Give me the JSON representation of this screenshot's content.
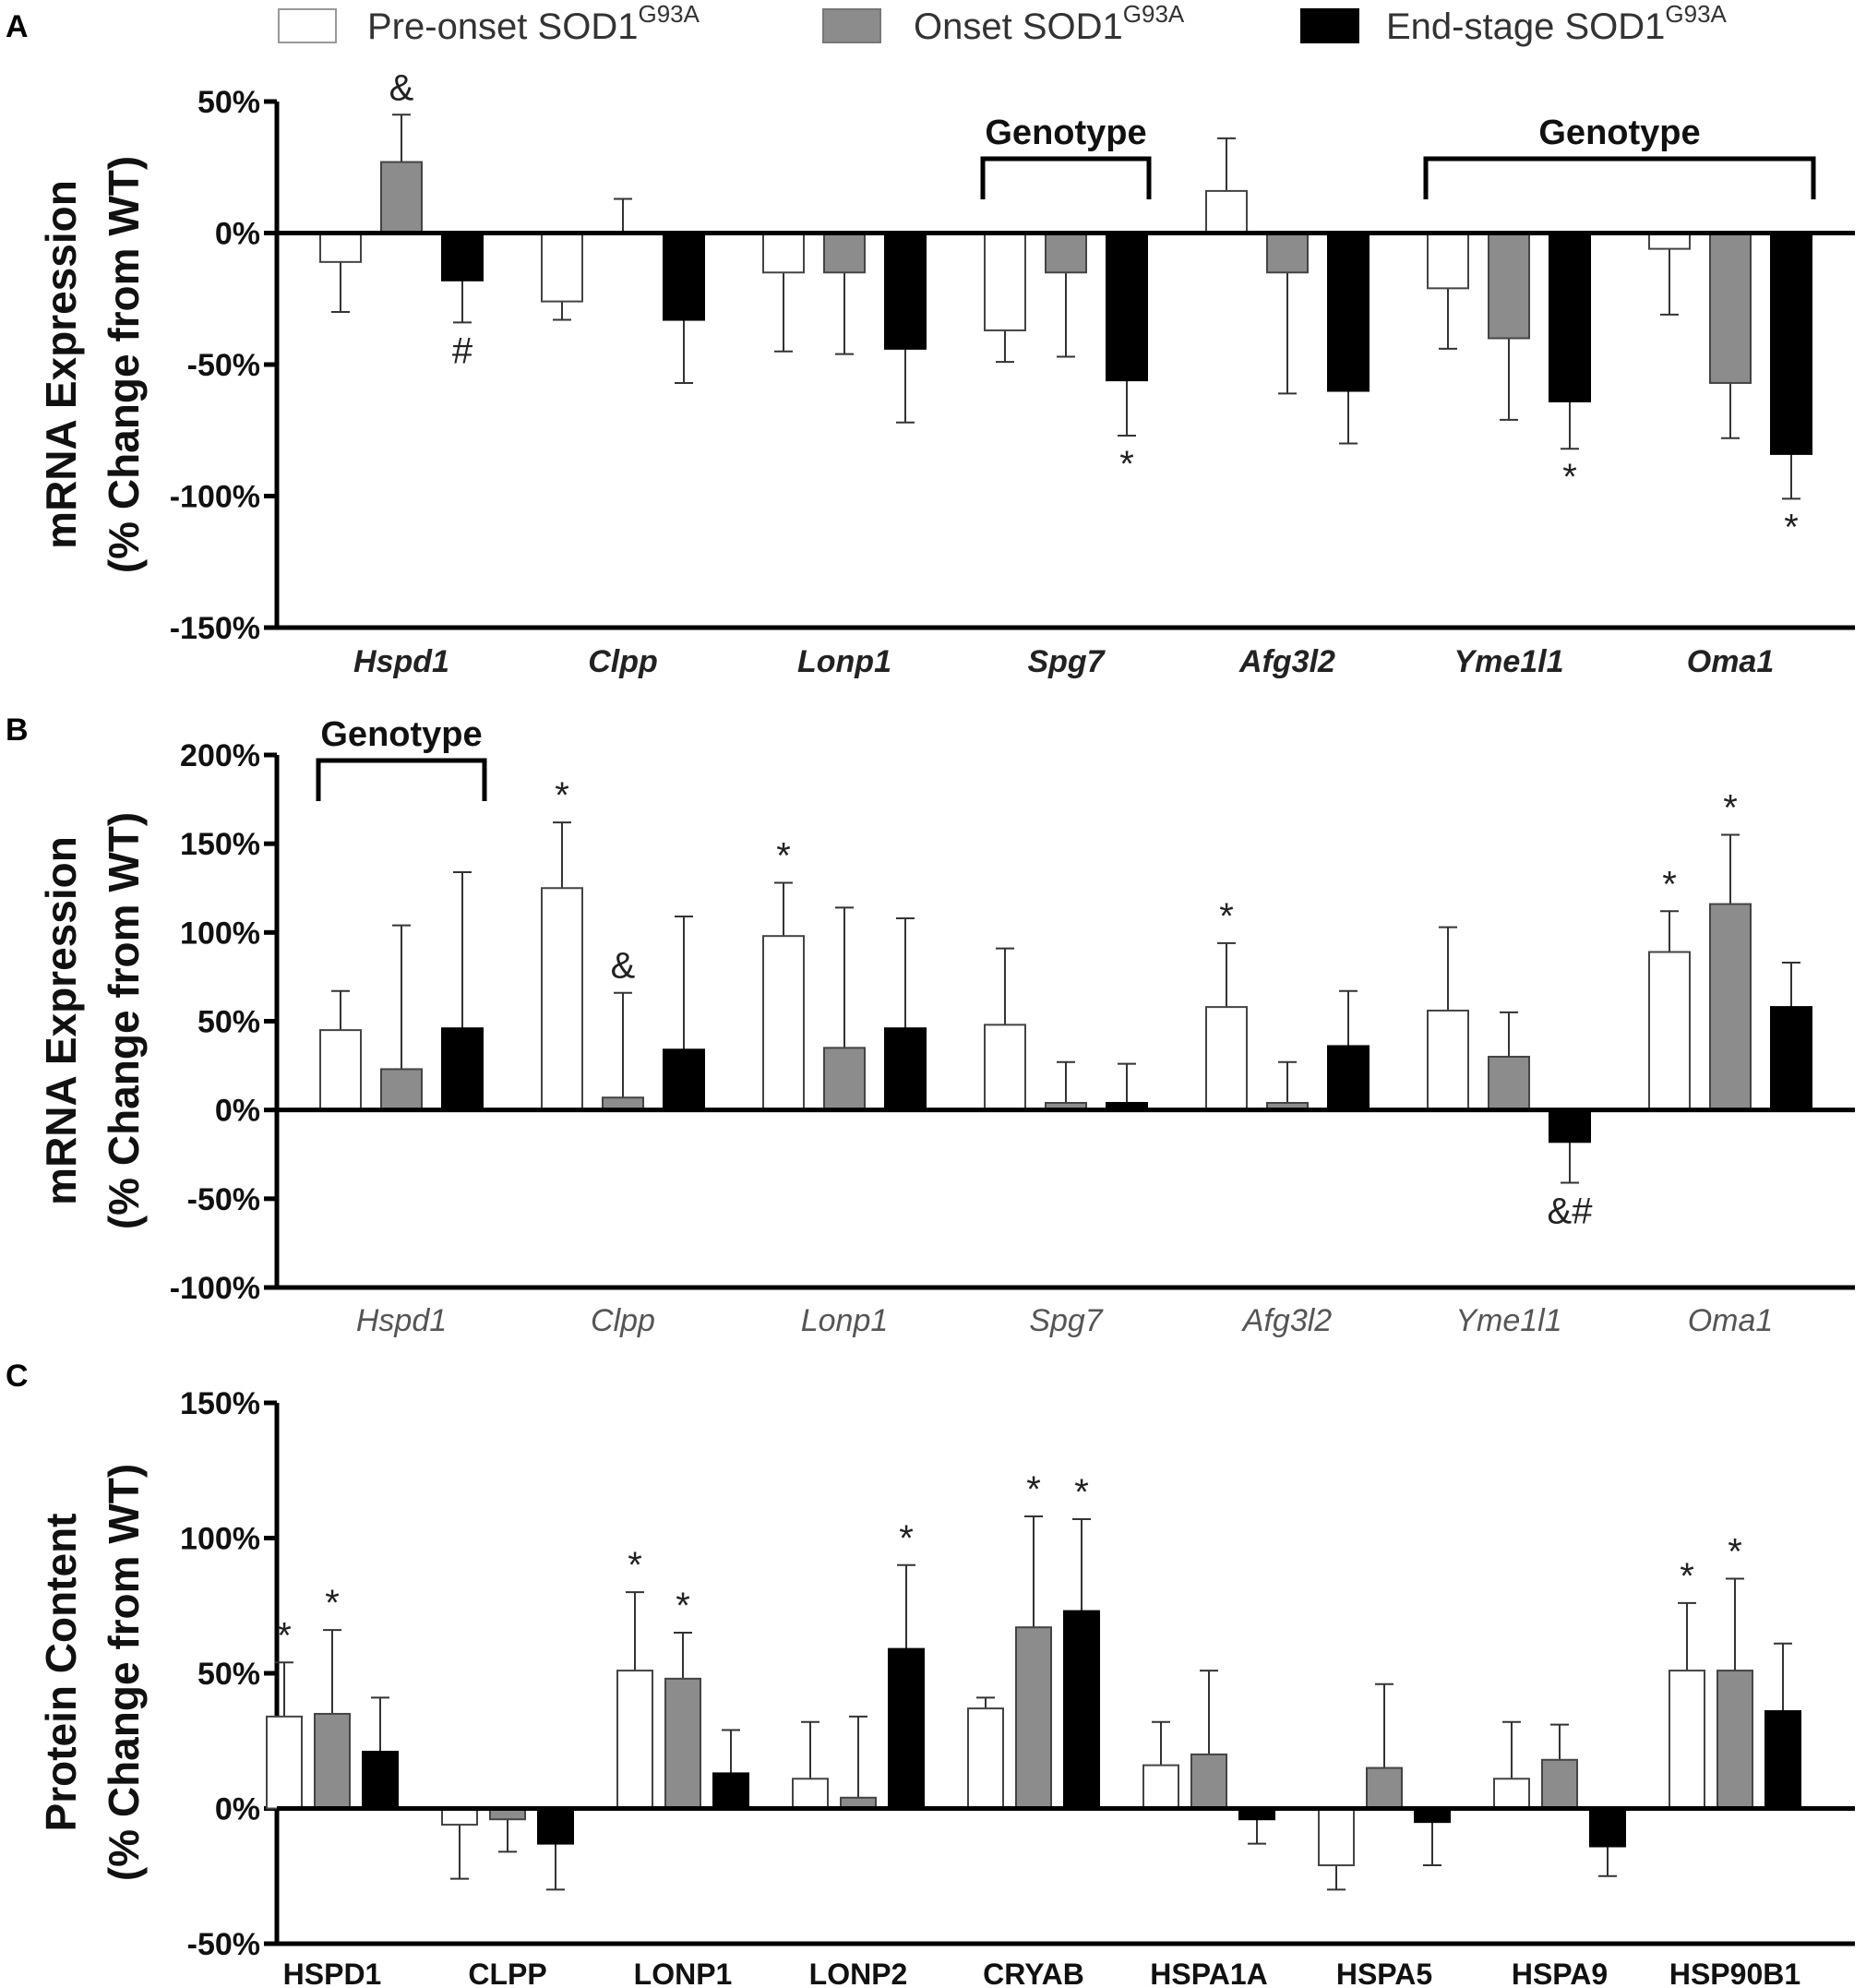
{
  "legend": [
    {
      "base": "Pre-onset SOD1",
      "sup": "G93A",
      "color": "#ffffff"
    },
    {
      "base": "Onset SOD1",
      "sup": "G93A",
      "color": "#8c8c8c"
    },
    {
      "base": "End-stage SOD1",
      "sup": "G93A",
      "color": "#000000"
    }
  ],
  "chart_data": [
    {
      "panel": "A",
      "type": "bar",
      "ylabel": [
        "mRNA Expression",
        "(% Change from WT)"
      ],
      "ylim": [
        -150,
        50
      ],
      "yticks": [
        50,
        0,
        -50,
        -100,
        -150
      ],
      "ytick_labels": [
        "50%",
        "0%",
        "-50%",
        "-100%",
        "-150%"
      ],
      "categories": [
        "Hspd1",
        "Clpp",
        "Lonp1",
        "Spg7",
        "Afg3l2",
        "Yme1l1",
        "Oma1"
      ],
      "category_style": "italic-bold",
      "series": [
        {
          "name": "Pre-onset SOD1G93A",
          "values": [
            -11,
            -26,
            -15,
            -37,
            16,
            -21,
            -6
          ],
          "errors": [
            19,
            7,
            30,
            12,
            20,
            23,
            25
          ]
        },
        {
          "name": "Onset SOD1G93A",
          "values": [
            27,
            0,
            -15,
            -15,
            -15,
            -40,
            -57
          ],
          "errors": [
            18,
            13,
            31,
            32,
            46,
            31,
            21
          ]
        },
        {
          "name": "End-stage SOD1G93A",
          "values": [
            -18,
            -33,
            -44,
            -56,
            -60,
            -64,
            -84
          ],
          "errors": [
            16,
            24,
            28,
            21,
            20,
            18,
            17
          ]
        }
      ],
      "annotations": [
        {
          "category": 0,
          "series": 1,
          "text": "&",
          "position": "above"
        },
        {
          "category": 0,
          "series": 2,
          "text": "#",
          "position": "below"
        },
        {
          "category": 3,
          "series": 2,
          "text": "*",
          "position": "below"
        },
        {
          "category": 5,
          "series": 2,
          "text": "*",
          "position": "below"
        },
        {
          "category": 6,
          "series": 2,
          "text": "*",
          "position": "below"
        }
      ],
      "brackets": [
        {
          "start": 3,
          "end": 3,
          "label": "Genotype"
        },
        {
          "start": 5,
          "end": 6,
          "label": "Genotype"
        }
      ]
    },
    {
      "panel": "B",
      "type": "bar",
      "ylabel": [
        "mRNA Expression",
        "(% Change from WT)"
      ],
      "ylim": [
        -100,
        200
      ],
      "yticks": [
        200,
        150,
        100,
        50,
        0,
        -50,
        -100
      ],
      "ytick_labels": [
        "200%",
        "150%",
        "100%",
        "50%",
        "0%",
        "-50%",
        "-100%"
      ],
      "categories": [
        "Hspd1",
        "Clpp",
        "Lonp1",
        "Spg7",
        "Afg3l2",
        "Yme1l1",
        "Oma1"
      ],
      "category_style": "italic-light",
      "series": [
        {
          "name": "Pre-onset SOD1G93A",
          "values": [
            45,
            125,
            98,
            48,
            58,
            56,
            89
          ],
          "errors": [
            22,
            37,
            30,
            43,
            36,
            47,
            23
          ]
        },
        {
          "name": "Onset SOD1G93A",
          "values": [
            23,
            7,
            35,
            4,
            4,
            30,
            116
          ],
          "errors": [
            81,
            59,
            79,
            23,
            23,
            25,
            39
          ]
        },
        {
          "name": "End-stage SOD1G93A",
          "values": [
            46,
            34,
            46,
            4,
            36,
            -18,
            58
          ],
          "errors": [
            88,
            75,
            62,
            22,
            31,
            23,
            25
          ]
        }
      ],
      "annotations": [
        {
          "category": 1,
          "series": 0,
          "text": "*",
          "position": "above"
        },
        {
          "category": 1,
          "series": 1,
          "text": "&",
          "position": "above"
        },
        {
          "category": 2,
          "series": 0,
          "text": "*",
          "position": "above"
        },
        {
          "category": 4,
          "series": 0,
          "text": "*",
          "position": "above"
        },
        {
          "category": 5,
          "series": 2,
          "text": "&#",
          "position": "below"
        },
        {
          "category": 6,
          "series": 0,
          "text": "*",
          "position": "above"
        },
        {
          "category": 6,
          "series": 1,
          "text": "*",
          "position": "above"
        }
      ],
      "brackets": [
        {
          "start": 0,
          "end": 0,
          "label": "Genotype"
        }
      ]
    },
    {
      "panel": "C",
      "type": "bar",
      "ylabel": [
        "Protein Content",
        "(% Change from WT)"
      ],
      "ylim": [
        -50,
        150
      ],
      "yticks": [
        150,
        100,
        50,
        0,
        -50
      ],
      "ytick_labels": [
        "150%",
        "100%",
        "50%",
        "0%",
        "-50%"
      ],
      "categories": [
        "HSPD1",
        "CLPP",
        "LONP1",
        "LONP2",
        "CRYAB",
        "HSPA1A",
        "HSPA5",
        "HSPA9",
        "HSP90B1"
      ],
      "category_style": "bold",
      "series": [
        {
          "name": "Pre-onset SOD1G93A",
          "values": [
            34,
            -6,
            51,
            11,
            37,
            16,
            -21,
            11,
            51
          ],
          "errors": [
            20,
            20,
            29,
            21,
            4,
            16,
            9,
            21,
            25
          ]
        },
        {
          "name": "Onset SOD1G93A",
          "values": [
            35,
            -4,
            48,
            4,
            67,
            20,
            15,
            18,
            51
          ],
          "errors": [
            31,
            12,
            17,
            30,
            41,
            31,
            31,
            13,
            34
          ]
        },
        {
          "name": "End-stage SOD1G93A",
          "values": [
            21,
            -13,
            13,
            59,
            73,
            -4,
            -5,
            -14,
            36
          ],
          "errors": [
            20,
            17,
            16,
            31,
            34,
            9,
            16,
            11,
            25
          ]
        }
      ],
      "annotations": [
        {
          "category": 0,
          "series": 0,
          "text": "*",
          "position": "above"
        },
        {
          "category": 0,
          "series": 1,
          "text": "*",
          "position": "above"
        },
        {
          "category": 2,
          "series": 0,
          "text": "*",
          "position": "above"
        },
        {
          "category": 2,
          "series": 1,
          "text": "*",
          "position": "above"
        },
        {
          "category": 3,
          "series": 2,
          "text": "*",
          "position": "above"
        },
        {
          "category": 4,
          "series": 1,
          "text": "*",
          "position": "above"
        },
        {
          "category": 4,
          "series": 2,
          "text": "*",
          "position": "above"
        },
        {
          "category": 8,
          "series": 0,
          "text": "*",
          "position": "above"
        },
        {
          "category": 8,
          "series": 1,
          "text": "*",
          "position": "above"
        }
      ],
      "brackets": []
    }
  ]
}
